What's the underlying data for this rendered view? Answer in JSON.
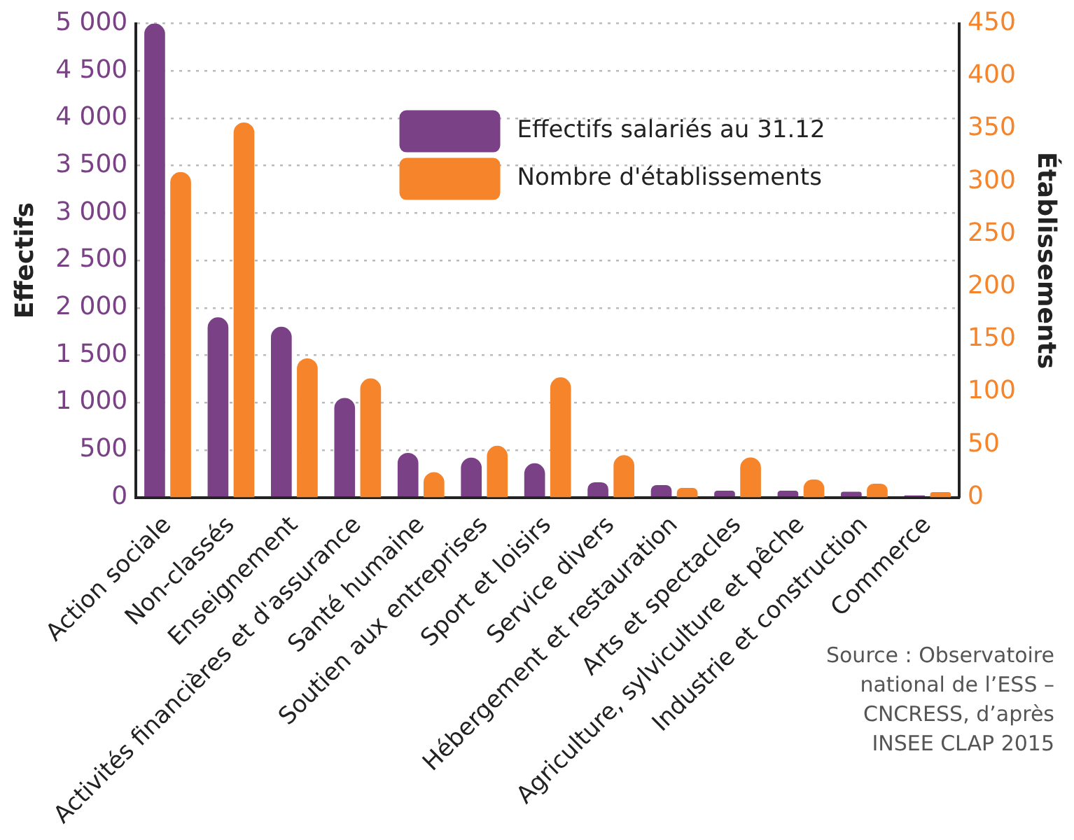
{
  "chart_data": {
    "type": "bar",
    "categories": [
      "Action sociale",
      "Non-classés",
      "Enseignement",
      "Activités financières et d'assurance",
      "Santé humaine",
      "Soutien aux entreprises",
      "Sport et loisirs",
      "Service divers",
      "Hébergement et restauration",
      "Arts et spectacles",
      "Agriculture, sylviculture et pêche",
      "Industrie et construction",
      "Commerce"
    ],
    "series": [
      {
        "name": "Effectifs salariés au 31.12",
        "color": "#7b4187",
        "values": [
          5000,
          1900,
          1800,
          1050,
          470,
          420,
          360,
          160,
          130,
          70,
          70,
          60,
          20
        ]
      },
      {
        "name": "Nombre d'établissements",
        "color": "#f5842a",
        "axis": "y2",
        "values": [
          309,
          356,
          132,
          113,
          24,
          49,
          114,
          40,
          9,
          38,
          17,
          13,
          5
        ]
      }
    ],
    "ylabel": "Effectifs",
    "y2label": "Établissements",
    "ylim": [
      0,
      5000
    ],
    "yticks": [
      0,
      500,
      {
        "value": 1000,
        "label": "1 000"
      },
      {
        "value": 1500,
        "label": "1 500"
      },
      {
        "value": 2000,
        "label": "2 000"
      },
      {
        "value": 2500,
        "label": "2 500"
      },
      {
        "value": 3000,
        "label": "3 000"
      },
      {
        "value": 3500,
        "label": "3 500"
      },
      {
        "value": 4000,
        "label": "4 000"
      },
      {
        "value": 4500,
        "label": "4 500"
      },
      {
        "value": 5000,
        "label": "5 000"
      }
    ],
    "y2lim": [
      0,
      450
    ],
    "y2ticks": [
      0,
      50,
      100,
      150,
      200,
      250,
      300,
      350,
      400,
      450
    ],
    "grid": "y",
    "legend": "top",
    "annotations": [
      "Source : Observatoire national de l’ESS – CNCRESS, d’après INSEE CLAP 2015"
    ]
  }
}
